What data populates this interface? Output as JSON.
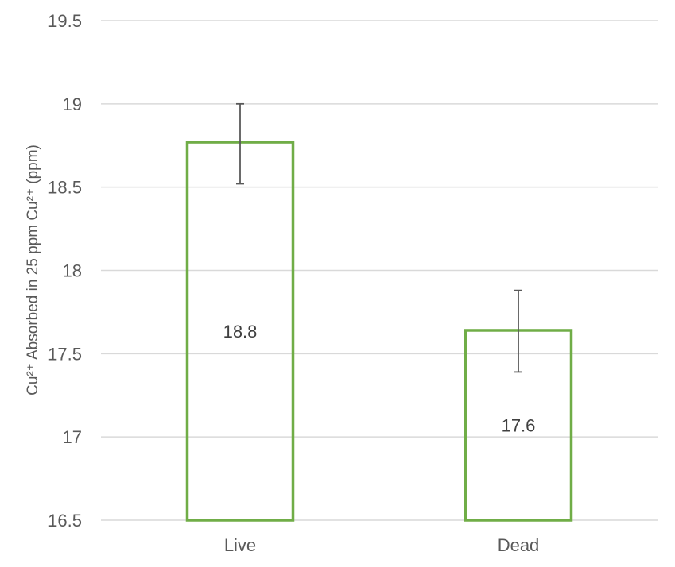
{
  "chart_data": {
    "type": "bar",
    "title": "",
    "xlabel": "",
    "ylabel": "Cu²⁺ Absorbed in 25 ppm Cu²⁺ (ppm)",
    "ylim": [
      16.5,
      19.5
    ],
    "yticks": [
      "16.5",
      "17",
      "17.5",
      "18",
      "18.5",
      "19",
      "19.5"
    ],
    "categories": [
      "Live",
      "Dead"
    ],
    "values": [
      18.77,
      17.64
    ],
    "data_labels": [
      "18.8",
      "17.6"
    ],
    "error_bars": [
      {
        "low": 18.52,
        "high": 19.0
      },
      {
        "low": 17.39,
        "high": 17.88
      }
    ],
    "grid": true,
    "bar_style": "outline",
    "bar_color": "#70ad47"
  }
}
